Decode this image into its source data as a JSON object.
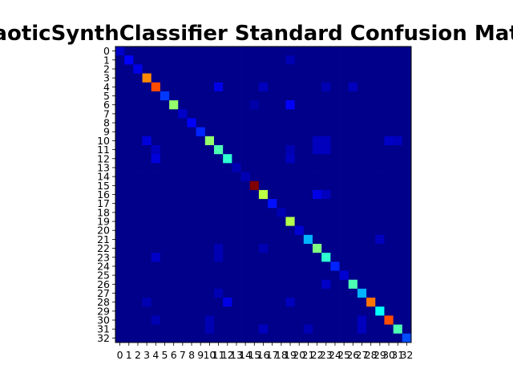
{
  "chart_data": {
    "type": "heatmap",
    "title": "ChaoticSynthClassifier Standard Confusion Matrix",
    "xlabel": "",
    "ylabel": "",
    "colormap": "jet",
    "xticks": [
      "0",
      "1",
      "2",
      "3",
      "4",
      "5",
      "6",
      "7",
      "8",
      "9",
      "10",
      "11",
      "12",
      "13",
      "14",
      "15",
      "16",
      "17",
      "18",
      "19",
      "20",
      "21",
      "22",
      "23",
      "24",
      "25",
      "26",
      "27",
      "28",
      "29",
      "30",
      "31",
      "32"
    ],
    "yticks": [
      "0",
      "1",
      "2",
      "3",
      "4",
      "5",
      "6",
      "7",
      "8",
      "9",
      "10",
      "11",
      "12",
      "13",
      "14",
      "15",
      "16",
      "17",
      "18",
      "19",
      "20",
      "21",
      "22",
      "23",
      "24",
      "25",
      "26",
      "27",
      "28",
      "29",
      "30",
      "31",
      "32"
    ],
    "value_range": [
      0,
      1
    ],
    "diagonal": [
      0.07,
      0.12,
      0.1,
      0.74,
      0.8,
      0.18,
      0.52,
      0.07,
      0.12,
      0.16,
      0.52,
      0.45,
      0.42,
      0.05,
      0.05,
      1.0,
      0.56,
      0.14,
      0.05,
      0.55,
      0.08,
      0.3,
      0.5,
      0.42,
      0.16,
      0.08,
      0.45,
      0.3,
      0.76,
      0.38,
      0.8,
      0.45,
      0.2
    ],
    "off_diagonal": [
      {
        "row": 1,
        "col": 19,
        "value": 0.05
      },
      {
        "row": 4,
        "col": 11,
        "value": 0.1
      },
      {
        "row": 4,
        "col": 16,
        "value": 0.06
      },
      {
        "row": 4,
        "col": 23,
        "value": 0.05
      },
      {
        "row": 4,
        "col": 26,
        "value": 0.06
      },
      {
        "row": 6,
        "col": 19,
        "value": 0.12
      },
      {
        "row": 6,
        "col": 15,
        "value": 0.04
      },
      {
        "row": 10,
        "col": 3,
        "value": 0.09
      },
      {
        "row": 10,
        "col": 22,
        "value": 0.06
      },
      {
        "row": 10,
        "col": 23,
        "value": 0.06
      },
      {
        "row": 10,
        "col": 30,
        "value": 0.07
      },
      {
        "row": 10,
        "col": 31,
        "value": 0.06
      },
      {
        "row": 11,
        "col": 4,
        "value": 0.06
      },
      {
        "row": 11,
        "col": 19,
        "value": 0.05
      },
      {
        "row": 11,
        "col": 22,
        "value": 0.06
      },
      {
        "row": 11,
        "col": 23,
        "value": 0.06
      },
      {
        "row": 12,
        "col": 4,
        "value": 0.09
      },
      {
        "row": 12,
        "col": 19,
        "value": 0.06
      },
      {
        "row": 16,
        "col": 22,
        "value": 0.1
      },
      {
        "row": 16,
        "col": 23,
        "value": 0.06
      },
      {
        "row": 21,
        "col": 29,
        "value": 0.06
      },
      {
        "row": 22,
        "col": 11,
        "value": 0.05
      },
      {
        "row": 22,
        "col": 16,
        "value": 0.05
      },
      {
        "row": 23,
        "col": 4,
        "value": 0.07
      },
      {
        "row": 23,
        "col": 11,
        "value": 0.05
      },
      {
        "row": 26,
        "col": 23,
        "value": 0.07
      },
      {
        "row": 27,
        "col": 11,
        "value": 0.05
      },
      {
        "row": 28,
        "col": 3,
        "value": 0.05
      },
      {
        "row": 28,
        "col": 12,
        "value": 0.1
      },
      {
        "row": 28,
        "col": 19,
        "value": 0.06
      },
      {
        "row": 30,
        "col": 4,
        "value": 0.05
      },
      {
        "row": 30,
        "col": 10,
        "value": 0.05
      },
      {
        "row": 30,
        "col": 27,
        "value": 0.06
      },
      {
        "row": 31,
        "col": 10,
        "value": 0.05
      },
      {
        "row": 31,
        "col": 16,
        "value": 0.06
      },
      {
        "row": 31,
        "col": 21,
        "value": 0.05
      },
      {
        "row": 31,
        "col": 27,
        "value": 0.06
      }
    ]
  }
}
